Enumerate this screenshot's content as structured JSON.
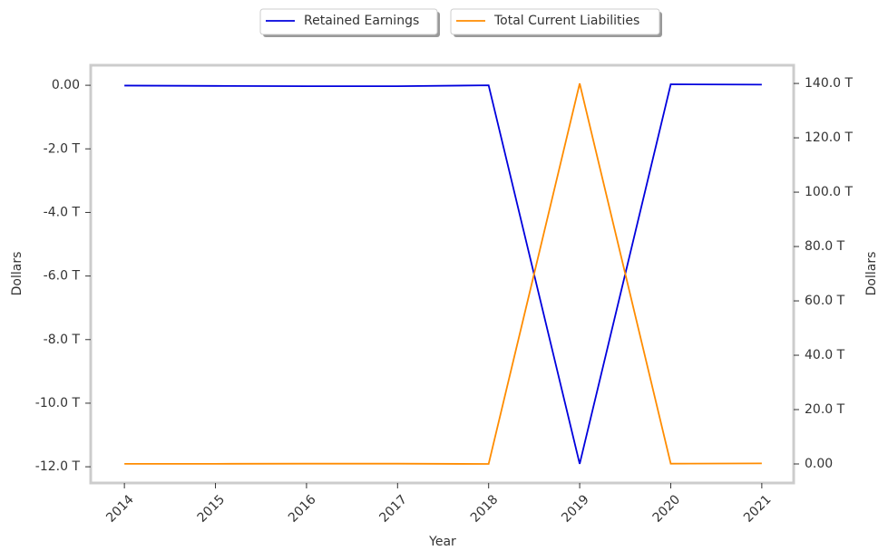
{
  "chart_data": {
    "type": "line",
    "x": [
      2014,
      2015,
      2016,
      2017,
      2018,
      2019,
      2020,
      2021
    ],
    "xlim": [
      2013.63,
      2021.35
    ],
    "xticks": [
      2014,
      2015,
      2016,
      2017,
      2018,
      2019,
      2020,
      2021
    ],
    "x_label": "Year",
    "y_label": "Dollars",
    "y2_label": "Dollars",
    "ylim": [
      -12.51,
      0.63
    ],
    "yticks": [
      {
        "value": 0,
        "label": "0.00"
      },
      {
        "value": -2,
        "label": "-2.0 T"
      },
      {
        "value": -4,
        "label": "-4.0 T"
      },
      {
        "value": -6,
        "label": "-6.0 T"
      },
      {
        "value": -8,
        "label": "-8.0 T"
      },
      {
        "value": -10,
        "label": "-10.0 T"
      },
      {
        "value": -12,
        "label": "-12.0 T"
      }
    ],
    "y2lim": [
      -7,
      146.7
    ],
    "y2ticks": [
      {
        "value": 0,
        "label": "0.00"
      },
      {
        "value": 20,
        "label": "20.0 T"
      },
      {
        "value": 40,
        "label": "40.0 T"
      },
      {
        "value": 60,
        "label": "60.0 T"
      },
      {
        "value": 80,
        "label": "80.0 T"
      },
      {
        "value": 100,
        "label": "100.0 T"
      },
      {
        "value": 120,
        "label": "120.0 T"
      },
      {
        "value": 140,
        "label": "140.0 T"
      }
    ],
    "grid": false,
    "series": [
      {
        "name": "Retained Earnings",
        "color": "#0000dd",
        "values": [
          -0.01,
          -0.02,
          -0.03,
          -0.03,
          0.0,
          -11.91,
          0.03,
          0.02
        ]
      },
      {
        "name": "Total Current Liabilities",
        "color": "#ff8c00",
        "axis": "y2",
        "values": [
          0.05,
          0.05,
          0.1,
          0.1,
          0.0,
          140,
          0.1,
          0.2
        ]
      }
    ]
  }
}
